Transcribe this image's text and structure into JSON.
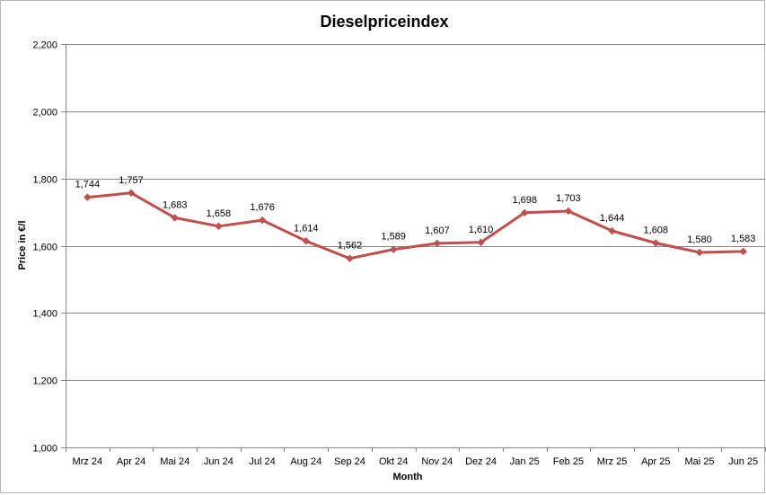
{
  "chart_data": {
    "type": "line",
    "title": "Dieselpriceindex",
    "xlabel": "Month",
    "ylabel": "Price in €/l",
    "categories": [
      "Mrz 24",
      "Apr 24",
      "Mai 24",
      "Jun 24",
      "Jul 24",
      "Aug 24",
      "Sep 24",
      "Okt 24",
      "Nov 24",
      "Dez 24",
      "Jan 25",
      "Feb 25",
      "Mrz 25",
      "Apr 25",
      "Mai 25",
      "Jun 25"
    ],
    "series": [
      {
        "values": [
          1.744,
          1.757,
          1.683,
          1.658,
          1.676,
          1.614,
          1.562,
          1.589,
          1.607,
          1.61,
          1.698,
          1.703,
          1.644,
          1.608,
          1.58,
          1.583
        ],
        "data_labels": [
          "1,744",
          "1,757",
          "1,683",
          "1,658",
          "1,676",
          "1,614",
          "1,562",
          "1,589",
          "1,607",
          "1,610",
          "1,698",
          "1,703",
          "1,644",
          "1,608",
          "1,580",
          "1,583"
        ],
        "color": "#c0504d"
      }
    ],
    "ylim": [
      1.0,
      2.2
    ],
    "yticks": [
      1.0,
      1.2,
      1.4,
      1.6,
      1.8,
      2.0,
      2.2
    ],
    "ytick_labels": [
      "1,000",
      "1,200",
      "1,400",
      "1,600",
      "1,800",
      "2,000",
      "2,200"
    ],
    "grid": true,
    "gridline_color": "#868686"
  }
}
